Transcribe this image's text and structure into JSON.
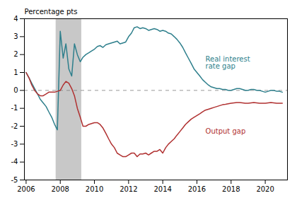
{
  "chart_data": {
    "type": "line",
    "ylabel": "Percentage pts",
    "xlim": [
      2005.9,
      2021.3
    ],
    "xticks": [
      2006,
      2008,
      2010,
      2012,
      2014,
      2016,
      2018,
      2020
    ],
    "ylim": [
      -5,
      4
    ],
    "yticks": [
      -5,
      -4,
      -3,
      -2,
      -1,
      0,
      1,
      2,
      3,
      4
    ],
    "grid": false,
    "x": [
      2006.0,
      2006.17,
      2006.33,
      2006.5,
      2006.67,
      2006.83,
      2007.0,
      2007.17,
      2007.33,
      2007.5,
      2007.67,
      2007.83,
      2008.0,
      2008.17,
      2008.33,
      2008.5,
      2008.67,
      2008.83,
      2009.0,
      2009.17,
      2009.33,
      2009.5,
      2009.67,
      2009.83,
      2010.0,
      2010.17,
      2010.33,
      2010.5,
      2010.67,
      2010.83,
      2011.0,
      2011.17,
      2011.33,
      2011.5,
      2011.67,
      2011.83,
      2012.0,
      2012.17,
      2012.33,
      2012.5,
      2012.67,
      2012.83,
      2013.0,
      2013.17,
      2013.33,
      2013.5,
      2013.67,
      2013.83,
      2014.0,
      2014.17,
      2014.33,
      2014.5,
      2014.67,
      2014.83,
      2015.0,
      2015.17,
      2015.33,
      2015.5,
      2015.67,
      2015.83,
      2016.0,
      2016.17,
      2016.33,
      2016.5,
      2016.67,
      2016.83,
      2017.0,
      2017.17,
      2017.33,
      2017.5,
      2017.67,
      2017.83,
      2018.0,
      2018.17,
      2018.33,
      2018.5,
      2018.67,
      2018.83,
      2019.0,
      2019.17,
      2019.33,
      2019.5,
      2019.67,
      2019.83,
      2020.0,
      2020.17,
      2020.33,
      2020.5,
      2020.67,
      2020.83,
      2021.0
    ],
    "series": [
      {
        "color": "#2e7f8c",
        "values": [
          1.0,
          0.7,
          0.4,
          0.1,
          -0.2,
          -0.5,
          -0.7,
          -0.9,
          -1.2,
          -1.5,
          -1.9,
          -2.2,
          3.3,
          1.8,
          2.6,
          1.2,
          0.8,
          2.6,
          2.0,
          1.6,
          1.85,
          2.0,
          2.1,
          2.2,
          2.3,
          2.45,
          2.5,
          2.4,
          2.55,
          2.6,
          2.65,
          2.7,
          2.75,
          2.6,
          2.65,
          2.7,
          3.0,
          3.2,
          3.5,
          3.55,
          3.45,
          3.5,
          3.45,
          3.35,
          3.4,
          3.45,
          3.4,
          3.3,
          3.35,
          3.3,
          3.2,
          3.15,
          3.0,
          2.85,
          2.65,
          2.4,
          2.1,
          1.8,
          1.5,
          1.2,
          1.0,
          0.8,
          0.6,
          0.45,
          0.3,
          0.2,
          0.15,
          0.1,
          0.1,
          0.05,
          0.05,
          0.0,
          0.0,
          0.05,
          0.1,
          0.1,
          0.05,
          0.0,
          0.0,
          0.05,
          0.05,
          0.0,
          0.0,
          -0.05,
          -0.1,
          -0.05,
          0.0,
          0.0,
          -0.05,
          -0.05,
          -0.1
        ]
      },
      {
        "color": "#b03030",
        "values": [
          1.0,
          0.7,
          0.3,
          0.0,
          -0.2,
          -0.3,
          -0.3,
          -0.2,
          -0.1,
          -0.1,
          -0.1,
          -0.05,
          0.0,
          0.3,
          0.5,
          0.4,
          0.1,
          -0.3,
          -1.0,
          -1.5,
          -2.0,
          -2.0,
          -1.9,
          -1.85,
          -1.8,
          -1.8,
          -1.9,
          -2.1,
          -2.4,
          -2.7,
          -3.0,
          -3.2,
          -3.5,
          -3.6,
          -3.7,
          -3.7,
          -3.6,
          -3.5,
          -3.5,
          -3.7,
          -3.55,
          -3.55,
          -3.5,
          -3.6,
          -3.5,
          -3.4,
          -3.4,
          -3.3,
          -3.5,
          -3.2,
          -3.0,
          -2.85,
          -2.7,
          -2.5,
          -2.3,
          -2.1,
          -1.9,
          -1.75,
          -1.6,
          -1.5,
          -1.4,
          -1.3,
          -1.2,
          -1.1,
          -1.05,
          -1.0,
          -0.95,
          -0.9,
          -0.85,
          -0.8,
          -0.78,
          -0.75,
          -0.72,
          -0.7,
          -0.68,
          -0.68,
          -0.7,
          -0.72,
          -0.72,
          -0.7,
          -0.68,
          -0.7,
          -0.72,
          -0.72,
          -0.72,
          -0.7,
          -0.68,
          -0.7,
          -0.72,
          -0.72,
          -0.72
        ]
      }
    ],
    "annotations": [
      {
        "text": "Real interest\nrate gap",
        "x": 2016.5,
        "y": 1.55,
        "color": "#2e7f8c"
      },
      {
        "text": "Output gap",
        "x": 2016.5,
        "y": -2.3,
        "color": "#b03030"
      }
    ],
    "shaded_regions": [
      {
        "x0": 2007.75,
        "x1": 2009.25,
        "color": "#c8c8c8"
      }
    ],
    "hlines": [
      {
        "y": 0,
        "color": "gray",
        "line_style": "dashed"
      }
    ]
  }
}
